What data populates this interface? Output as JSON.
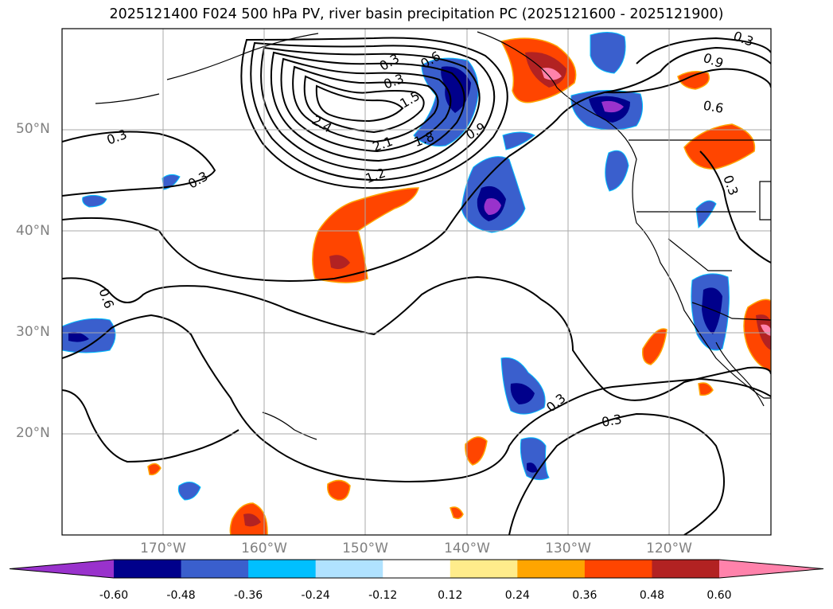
{
  "title": "2025121400 F024 500 hPa PV, river basin precipitation PC (2025121600 - 2025121900)",
  "map": {
    "lat_labels": [
      "50°N",
      "40°N",
      "30°N",
      "20°N"
    ],
    "lon_labels": [
      "170°W",
      "160°W",
      "150°W",
      "140°W",
      "130°W",
      "120°W"
    ],
    "contour_labels": [
      "0.3",
      "0.6",
      "0.9",
      "1.2",
      "1.5",
      "1.8",
      "2.1",
      "2.4",
      "0.3",
      "0.3",
      "0.3",
      "0.6",
      "0.9",
      "0.3",
      "0.3",
      "0.6",
      "0.3",
      "0.3"
    ],
    "colors": {
      "frame": "#000000",
      "grid": "#aaaaaa",
      "tick_label": "#808080"
    }
  },
  "colorbar": {
    "levels": [
      "-0.60",
      "-0.48",
      "-0.36",
      "-0.24",
      "-0.12",
      "0.12",
      "0.24",
      "0.36",
      "0.48",
      "0.60"
    ],
    "colors": [
      "#9932cc",
      "#00008b",
      "#3a5fcd",
      "#00bfff",
      "#b0e2ff",
      "#ffffff",
      "#ffec8b",
      "#ffa500",
      "#ff4500",
      "#b22222",
      "#ff82ab"
    ]
  }
}
